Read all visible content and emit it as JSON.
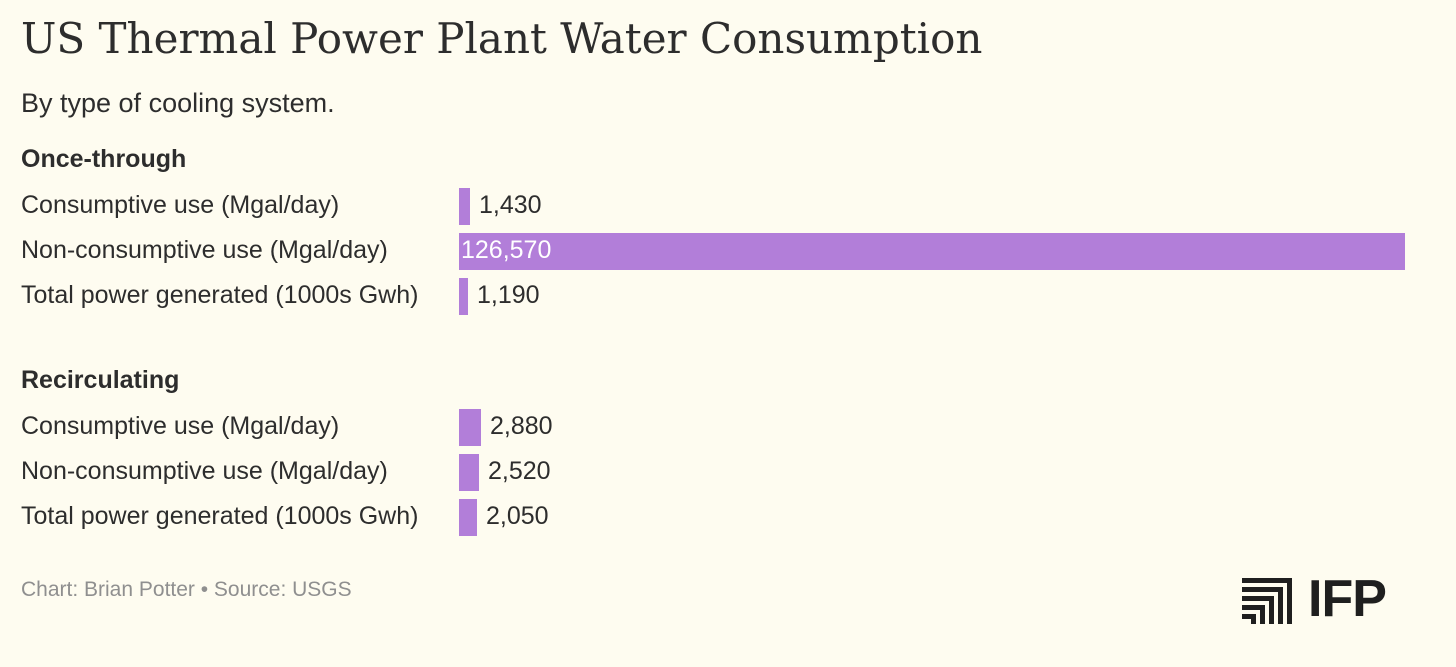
{
  "header": {
    "title": "US Thermal Power Plant Water Consumption",
    "subtitle": "By type of cooling system."
  },
  "footer": {
    "credit": "Chart: Brian Potter • Source: USGS",
    "logo_text": "IFP"
  },
  "colors": {
    "bar": "#b27ed9",
    "background": "#fefcf0"
  },
  "icons": [
    "ifp-logo-icon"
  ],
  "chart_data": {
    "type": "bar",
    "orientation": "horizontal",
    "title": "US Thermal Power Plant Water Consumption",
    "subtitle": "By type of cooling system.",
    "xlim": [
      0,
      126570
    ],
    "grid": false,
    "groups": [
      {
        "name": "Once-through",
        "categories": [
          "Consumptive use (Mgal/day)",
          "Non-consumptive use (Mgal/day)",
          "Total power generated (1000s Gwh)"
        ],
        "values": [
          1430,
          126570,
          1190
        ],
        "labels": [
          "1,430",
          "126,570",
          "1,190"
        ]
      },
      {
        "name": "Recirculating",
        "categories": [
          "Consumptive use (Mgal/day)",
          "Non-consumptive use (Mgal/day)",
          "Total power generated (1000s Gwh)"
        ],
        "values": [
          2880,
          2520,
          2050
        ],
        "labels": [
          "2,880",
          "2,520",
          "2,050"
        ]
      }
    ]
  }
}
